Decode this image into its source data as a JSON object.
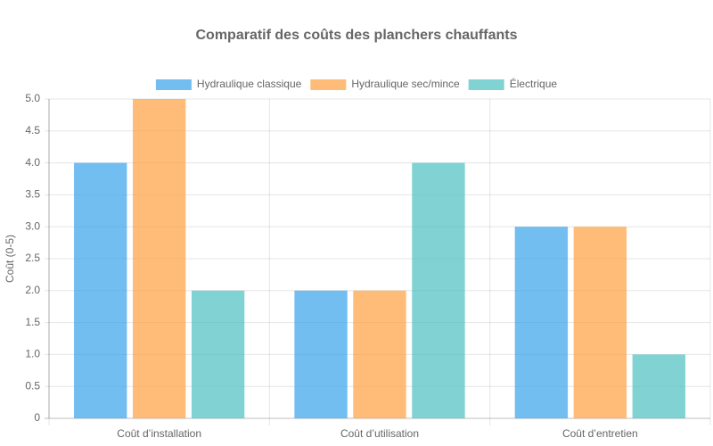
{
  "chart_data": {
    "type": "bar",
    "title": "Comparatif des coûts des planchers chauffants",
    "y_label": "Coût (0-5)",
    "categories": [
      "Coût d’installation",
      "Coût d’utilisation",
      "Coût d’entretien"
    ],
    "series": [
      {
        "name": "Hydraulique classique",
        "color": "rgba(54,162,235,0.7)",
        "values": [
          4,
          2,
          3
        ]
      },
      {
        "name": "Hydraulique sec/mince",
        "color": "rgba(255,159,64,0.7)",
        "values": [
          5,
          2,
          3
        ]
      },
      {
        "name": "Électrique",
        "color": "rgba(75,192,192,0.7)",
        "values": [
          2,
          4,
          1
        ]
      }
    ],
    "ylim": [
      0,
      5
    ],
    "yticks": [
      0,
      0.5,
      {
        "value": 1,
        "label": "1.0"
      },
      1.5,
      {
        "value": 2,
        "label": "2.0"
      },
      2.5,
      {
        "value": 3,
        "label": "3.0"
      },
      3.5,
      {
        "value": 4,
        "label": "4.0"
      },
      4.5,
      {
        "value": 5,
        "label": "5.0"
      }
    ],
    "grid": true,
    "legend": "top"
  }
}
